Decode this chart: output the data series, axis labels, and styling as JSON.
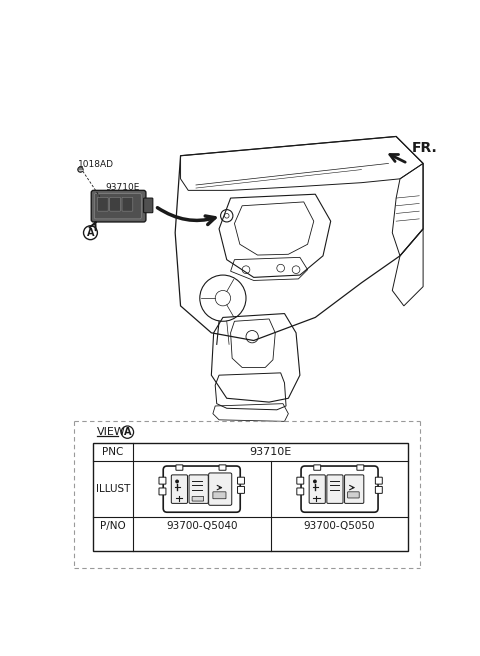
{
  "bg_color": "#ffffff",
  "line_color": "#1a1a1a",
  "dashed_color": "#999999",
  "label_1018AD": "1018AD",
  "label_93710E": "93710E",
  "label_FR": "FR.",
  "label_VIEW": "VIEW",
  "label_A": "A",
  "label_PNC": "PNC",
  "label_ILLUST": "ILLUST",
  "label_PNO": "P/NO",
  "pnc_value": "93710E",
  "pno_left": "93700-Q5040",
  "pno_right": "93700-Q5050",
  "fig_w": 4.8,
  "fig_h": 6.56,
  "dpi": 100
}
